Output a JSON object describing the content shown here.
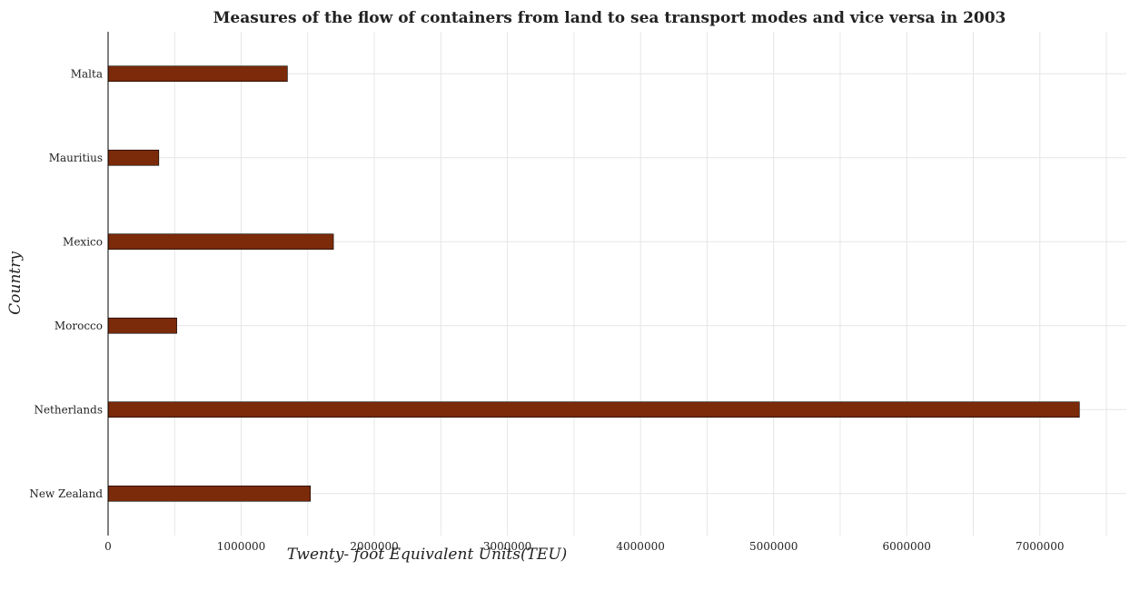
{
  "chart_data": {
    "type": "bar",
    "orientation": "horizontal",
    "title": "Measures of the flow of containers from land to sea transport modes and vice versa in 2003",
    "xlabel": "Twenty- foot Equivalent Units(TEU)",
    "ylabel": "Country",
    "categories": [
      "Malta",
      "Mauritius",
      "Mexico",
      "Morocco",
      "Netherlands",
      "New Zealand"
    ],
    "values": [
      1347000,
      381000,
      1693000,
      516000,
      7297000,
      1520000
    ],
    "xlim": [
      0,
      7650000
    ],
    "xticks": [
      0,
      1000000,
      2000000,
      3000000,
      4000000,
      5000000,
      6000000,
      7000000
    ],
    "xtick_labels": [
      "0",
      "1000000",
      "2000000",
      "3000000",
      "4000000",
      "5000000",
      "6000000",
      "7000000"
    ],
    "grid": true,
    "bar_color": "#7b2a0a"
  }
}
